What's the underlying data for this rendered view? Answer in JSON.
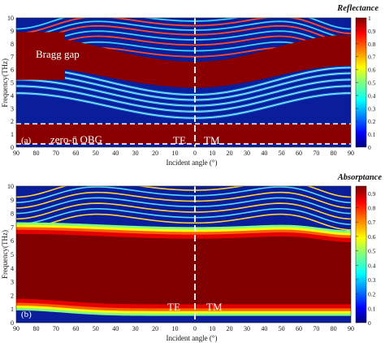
{
  "chart_data": [
    {
      "type": "heatmap",
      "panel_label": "(a)",
      "colorbar_title": "Reflectance",
      "xlabel": "Incident angle (°)",
      "ylabel": "Frequency(THz)",
      "x_ticks": [
        "90",
        "80",
        "70",
        "60",
        "50",
        "40",
        "30",
        "20",
        "10",
        "0",
        "10",
        "20",
        "30",
        "40",
        "50",
        "60",
        "70",
        "80",
        "90"
      ],
      "y_ticks": [
        "0",
        "1",
        "2",
        "3",
        "4",
        "5",
        "6",
        "7",
        "8",
        "9",
        "10"
      ],
      "ylim": [
        0,
        10
      ],
      "xlim_left_TE": [
        90,
        0
      ],
      "xlim_right_TM": [
        0,
        90
      ],
      "colorbar_ticks": [
        "0",
        "0.1",
        "0.2",
        "0.3",
        "0.4",
        "0.5",
        "0.6",
        "0.7",
        "0.8",
        "0.9",
        "1"
      ],
      "colorbar_range": [
        0,
        1
      ],
      "annotations": {
        "gap": "Bragg gap",
        "obg": "zero-n̄ OBG",
        "te": "TE",
        "tm": "TM"
      },
      "regions": {
        "bragg_gap_freq_at_normal": [
          4.6,
          6.6
        ],
        "bragg_gap_freq_at_grazing": [
          6.3,
          8.7
        ],
        "zero_n_obg_freq": [
          0.25,
          1.8
        ]
      }
    },
    {
      "type": "heatmap",
      "panel_label": "(b)",
      "colorbar_title": "Absorptance",
      "xlabel": "Incident angle (°)",
      "ylabel": "Frequency(THz)",
      "x_ticks": [
        "90",
        "80",
        "70",
        "60",
        "50",
        "40",
        "30",
        "20",
        "10",
        "0",
        "10",
        "20",
        "30",
        "40",
        "50",
        "60",
        "70",
        "80",
        "90"
      ],
      "y_ticks": [
        "0",
        "1",
        "2",
        "3",
        "4",
        "5",
        "6",
        "7",
        "8",
        "9",
        "10"
      ],
      "ylim": [
        0,
        10
      ],
      "xlim_left_TE": [
        90,
        0
      ],
      "xlim_right_TM": [
        0,
        90
      ],
      "colorbar_ticks": [
        "0",
        "0.1",
        "0.2",
        "0.3",
        "0.4",
        "0.5",
        "0.6",
        "0.7",
        "0.8",
        "0.9"
      ],
      "colorbar_range": [
        0,
        0.95
      ],
      "annotations": {
        "te": "TE",
        "tm": "TM"
      },
      "regions": {
        "high_absorption_band_freq": [
          0.5,
          7.0
        ]
      }
    }
  ]
}
